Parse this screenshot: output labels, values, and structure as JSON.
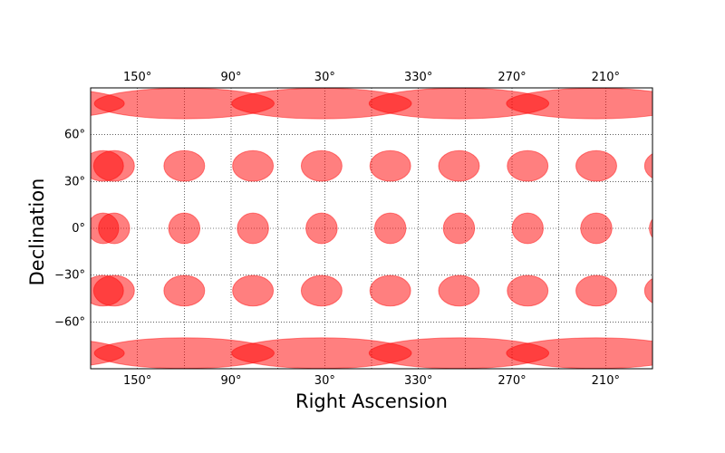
{
  "chart_data": {
    "type": "scatter",
    "title": "",
    "xlabel": "Right Ascension",
    "ylabel": "Declination",
    "x_tick_labels": [
      "150°",
      "90°",
      "30°",
      "330°",
      "270°",
      "210°"
    ],
    "y_tick_labels": [
      "60°",
      "30°",
      "0°",
      "−30°",
      "−60°"
    ],
    "grid": true,
    "marker_color": "#ff0000",
    "marker_opacity": 0.5,
    "circle_radius_deg": 10,
    "series": [
      {
        "points": [
          {
            "ra": 165,
            "dec": 40
          },
          {
            "ra": 120,
            "dec": 40
          },
          {
            "ra": 76,
            "dec": 40
          },
          {
            "ra": 32,
            "dec": 40
          },
          {
            "ra": 348,
            "dec": 40
          },
          {
            "ra": 304,
            "dec": 40
          },
          {
            "ra": 260,
            "dec": 40
          },
          {
            "ra": 216,
            "dec": 40
          },
          {
            "ra": 172,
            "dec": 40
          },
          {
            "ra": 165,
            "dec": 0
          },
          {
            "ra": 120,
            "dec": 0
          },
          {
            "ra": 76,
            "dec": 0
          },
          {
            "ra": 32,
            "dec": 0
          },
          {
            "ra": 348,
            "dec": 0
          },
          {
            "ra": 304,
            "dec": 0
          },
          {
            "ra": 260,
            "dec": 0
          },
          {
            "ra": 216,
            "dec": 0
          },
          {
            "ra": 172,
            "dec": 0
          },
          {
            "ra": 165,
            "dec": -40
          },
          {
            "ra": 120,
            "dec": -40
          },
          {
            "ra": 76,
            "dec": -40
          },
          {
            "ra": 32,
            "dec": -40
          },
          {
            "ra": 348,
            "dec": -40
          },
          {
            "ra": 304,
            "dec": -40
          },
          {
            "ra": 260,
            "dec": -40
          },
          {
            "ra": 216,
            "dec": -40
          },
          {
            "ra": 172,
            "dec": -40
          },
          {
            "ra": 120,
            "dec": 80
          },
          {
            "ra": 32,
            "dec": 80
          },
          {
            "ra": 304,
            "dec": 80
          },
          {
            "ra": 216,
            "dec": 80
          },
          {
            "ra": 120,
            "dec": -80
          },
          {
            "ra": 32,
            "dec": -80
          },
          {
            "ra": 304,
            "dec": -80
          },
          {
            "ra": 216,
            "dec": -80
          }
        ]
      }
    ]
  }
}
